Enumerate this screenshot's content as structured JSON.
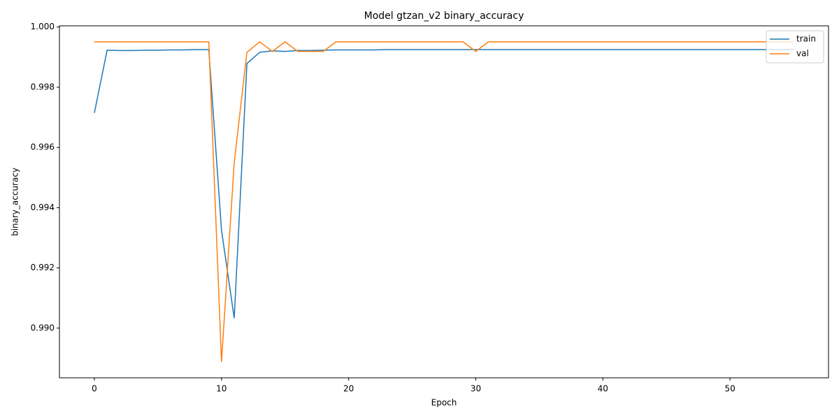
{
  "chart_data": {
    "type": "line",
    "title": "Model gtzan_v2 binary_accuracy",
    "x_label": "Epoch",
    "y_label": "binary_accuracy",
    "x": [
      0,
      1,
      2,
      3,
      4,
      5,
      6,
      7,
      8,
      9,
      10,
      11,
      12,
      13,
      14,
      15,
      16,
      17,
      18,
      19,
      20,
      21,
      22,
      23,
      24,
      25,
      26,
      27,
      28,
      29,
      30,
      31,
      32,
      33,
      34,
      35,
      36,
      37,
      38,
      39,
      40,
      41,
      42,
      43,
      44,
      45,
      46,
      47,
      48,
      49,
      50,
      51,
      52,
      53,
      54,
      55
    ],
    "series": [
      {
        "name": "train",
        "color": "#1f77b4",
        "values": [
          0.99715,
          0.99923,
          0.99922,
          0.99922,
          0.99923,
          0.99923,
          0.99924,
          0.99924,
          0.99925,
          0.99925,
          0.99325,
          0.99033,
          0.99879,
          0.99916,
          0.99921,
          0.99919,
          0.99922,
          0.99922,
          0.99923,
          0.99924,
          0.99924,
          0.99924,
          0.99924,
          0.99925,
          0.99925,
          0.99925,
          0.99925,
          0.99925,
          0.99925,
          0.99925,
          0.99925,
          0.99925,
          0.99925,
          0.99925,
          0.99925,
          0.99925,
          0.99925,
          0.99925,
          0.99925,
          0.99925,
          0.99925,
          0.99925,
          0.99925,
          0.99925,
          0.99925,
          0.99925,
          0.99925,
          0.99925,
          0.99925,
          0.99925,
          0.99925,
          0.99925,
          0.99925,
          0.99925,
          0.99925,
          0.99925
        ]
      },
      {
        "name": "val",
        "color": "#ff7f0e",
        "values": [
          0.99951,
          0.99951,
          0.99951,
          0.99951,
          0.99951,
          0.99951,
          0.99951,
          0.99951,
          0.99951,
          0.99951,
          0.98888,
          0.9955,
          0.99916,
          0.99951,
          0.99919,
          0.99951,
          0.99919,
          0.99919,
          0.99919,
          0.99951,
          0.99951,
          0.99951,
          0.99951,
          0.99951,
          0.99951,
          0.99951,
          0.99951,
          0.99951,
          0.99951,
          0.99951,
          0.99919,
          0.99951,
          0.99951,
          0.99951,
          0.99951,
          0.99951,
          0.99951,
          0.99951,
          0.99951,
          0.99951,
          0.99951,
          0.99951,
          0.99951,
          0.99951,
          0.99951,
          0.99951,
          0.99951,
          0.99951,
          0.99951,
          0.99951,
          0.99951,
          0.99951,
          0.99951,
          0.99951,
          0.99951,
          0.99951
        ]
      }
    ],
    "xlim": [
      -2.75,
      57.75
    ],
    "xticks": [
      0,
      10,
      20,
      30,
      40,
      50
    ],
    "ylim": [
      0.98835,
      1.00004
    ],
    "yticks": [
      {
        "value": 0.99,
        "label": "0.990"
      },
      {
        "value": 0.992,
        "label": "0.992"
      },
      {
        "value": 0.994,
        "label": "0.994"
      },
      {
        "value": 0.996,
        "label": "0.996"
      },
      {
        "value": 0.998,
        "label": "0.998"
      },
      {
        "value": 1.0,
        "label": "1.000"
      }
    ],
    "legend": "upper right",
    "grid": false
  }
}
